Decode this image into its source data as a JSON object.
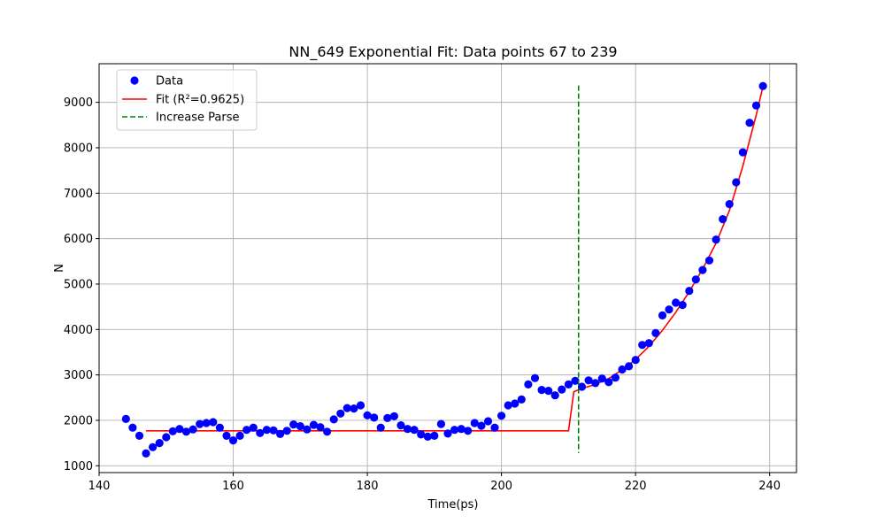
{
  "chart_data": {
    "type": "scatter",
    "title": "NN_649 Exponential Fit: Data points 67 to 239",
    "xlabel": "Time(ps)",
    "ylabel": "N",
    "xlim": [
      140,
      244
    ],
    "ylim": [
      850,
      9850
    ],
    "xticks": [
      140,
      160,
      180,
      200,
      220,
      240
    ],
    "yticks": [
      1000,
      2000,
      3000,
      4000,
      5000,
      6000,
      7000,
      8000,
      9000
    ],
    "grid": true,
    "legend_position": "top-left",
    "colors": {
      "data": "#0000ff",
      "fit": "#ff0000",
      "parse": "#008000"
    },
    "series": [
      {
        "name": "Data",
        "kind": "scatter",
        "points": [
          [
            144,
            2030
          ],
          [
            145,
            1840
          ],
          [
            146,
            1660
          ],
          [
            147,
            1270
          ],
          [
            148,
            1410
          ],
          [
            149,
            1500
          ],
          [
            150,
            1630
          ],
          [
            151,
            1760
          ],
          [
            152,
            1810
          ],
          [
            153,
            1750
          ],
          [
            154,
            1800
          ],
          [
            155,
            1920
          ],
          [
            156,
            1940
          ],
          [
            157,
            1960
          ],
          [
            158,
            1840
          ],
          [
            159,
            1660
          ],
          [
            160,
            1560
          ],
          [
            161,
            1660
          ],
          [
            162,
            1790
          ],
          [
            163,
            1840
          ],
          [
            164,
            1720
          ],
          [
            165,
            1790
          ],
          [
            166,
            1780
          ],
          [
            167,
            1700
          ],
          [
            168,
            1770
          ],
          [
            169,
            1910
          ],
          [
            170,
            1870
          ],
          [
            171,
            1800
          ],
          [
            172,
            1900
          ],
          [
            173,
            1850
          ],
          [
            174,
            1750
          ],
          [
            175,
            2020
          ],
          [
            176,
            2150
          ],
          [
            177,
            2270
          ],
          [
            178,
            2260
          ],
          [
            179,
            2330
          ],
          [
            180,
            2110
          ],
          [
            181,
            2060
          ],
          [
            182,
            1840
          ],
          [
            183,
            2050
          ],
          [
            184,
            2090
          ],
          [
            185,
            1890
          ],
          [
            186,
            1810
          ],
          [
            187,
            1790
          ],
          [
            188,
            1690
          ],
          [
            189,
            1640
          ],
          [
            190,
            1660
          ],
          [
            191,
            1920
          ],
          [
            192,
            1710
          ],
          [
            193,
            1790
          ],
          [
            194,
            1810
          ],
          [
            195,
            1770
          ],
          [
            196,
            1940
          ],
          [
            197,
            1880
          ],
          [
            198,
            1980
          ],
          [
            199,
            1840
          ],
          [
            200,
            2100
          ],
          [
            201,
            2330
          ],
          [
            202,
            2370
          ],
          [
            203,
            2460
          ],
          [
            204,
            2790
          ],
          [
            205,
            2930
          ],
          [
            206,
            2670
          ],
          [
            207,
            2650
          ],
          [
            208,
            2550
          ],
          [
            209,
            2680
          ],
          [
            210,
            2790
          ],
          [
            211,
            2870
          ],
          [
            212,
            2740
          ],
          [
            213,
            2880
          ],
          [
            214,
            2820
          ],
          [
            215,
            2920
          ],
          [
            216,
            2840
          ],
          [
            217,
            2940
          ],
          [
            218,
            3120
          ],
          [
            219,
            3190
          ],
          [
            220,
            3330
          ],
          [
            221,
            3660
          ],
          [
            222,
            3700
          ],
          [
            223,
            3920
          ],
          [
            224,
            4310
          ],
          [
            225,
            4440
          ],
          [
            226,
            4590
          ],
          [
            227,
            4540
          ],
          [
            228,
            4850
          ],
          [
            229,
            5100
          ],
          [
            230,
            5310
          ],
          [
            231,
            5520
          ],
          [
            232,
            5980
          ],
          [
            233,
            6430
          ],
          [
            234,
            6760
          ],
          [
            235,
            7240
          ],
          [
            236,
            7900
          ],
          [
            237,
            8550
          ],
          [
            238,
            8930
          ],
          [
            239,
            9360
          ]
        ]
      },
      {
        "name": "Fit (R²=0.9625)",
        "kind": "line",
        "points": [
          [
            147,
            1770
          ],
          [
            170,
            1770
          ],
          [
            190,
            1770
          ],
          [
            210,
            1770
          ],
          [
            210.8,
            2630
          ],
          [
            212,
            2700
          ],
          [
            214,
            2790
          ],
          [
            216,
            2920
          ],
          [
            218,
            3110
          ],
          [
            220,
            3340
          ],
          [
            222,
            3630
          ],
          [
            224,
            3980
          ],
          [
            226,
            4380
          ],
          [
            228,
            4830
          ],
          [
            230,
            5330
          ],
          [
            232,
            5900
          ],
          [
            234,
            6620
          ],
          [
            236,
            7600
          ],
          [
            238,
            8720
          ],
          [
            239,
            9350
          ]
        ]
      },
      {
        "name": "Increase Parse",
        "kind": "vline",
        "x": 211.5,
        "y_range": [
          1280,
          9370
        ]
      }
    ]
  }
}
